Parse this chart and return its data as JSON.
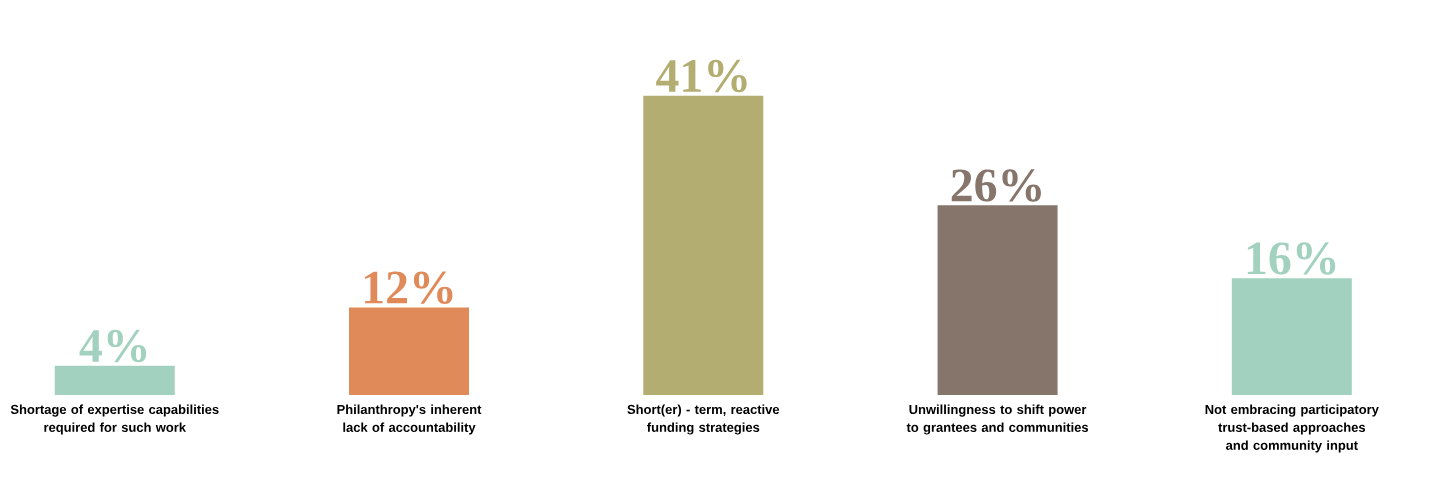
{
  "chart_data": {
    "type": "bar",
    "categories": [
      "Shortage of expertise capabilities required for such work",
      "Philanthropy's inherent lack of accountability",
      "Short(er) - term, reactive funding strategies",
      "Unwillingness to shift power to grantees and communities",
      "Not embracing participatory trust-based approaches and community input"
    ],
    "values": [
      4,
      12,
      41,
      26,
      16
    ],
    "value_labels": [
      "4%",
      "12%",
      "41%",
      "26%",
      "16%"
    ],
    "colors": [
      "#a2d2bf",
      "#e08a5a",
      "#b3ad72",
      "#85756a",
      "#a2d2bf"
    ]
  }
}
